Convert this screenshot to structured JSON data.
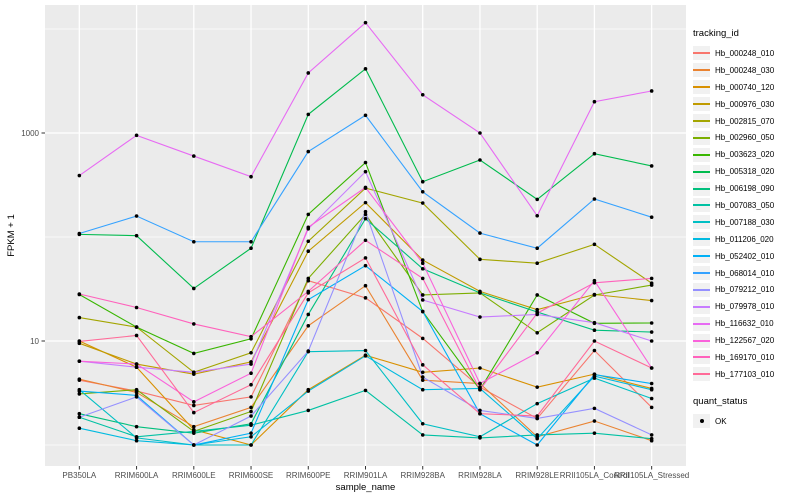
{
  "chart_data": {
    "type": "line",
    "title": "",
    "xlabel": "sample_name",
    "ylabel": "FPKM + 1",
    "y_scale": "log10",
    "y_tick_labels": [
      "1000",
      "10"
    ],
    "y_tick_values": [
      1000,
      10
    ],
    "y_minor_gridline_values": [
      1,
      100,
      10000
    ],
    "ylim": [
      0.65,
      15000
    ],
    "grid": "on",
    "legend_position": "right",
    "categories": [
      "PB350LA",
      "RRIM600LA",
      "RRIM600LE",
      "RRIM600SE",
      "RRIM600PE",
      "RRIM901LA",
      "RRIM928BA",
      "RRIM928LA",
      "RRIM928LE",
      "RRII105LA_Control",
      "RRII105LA_Stressed"
    ],
    "series": [
      {
        "name": "Hb_000248_010",
        "color": "#F8766D",
        "values": [
          4.2,
          3.3,
          2.4,
          2.9,
          38,
          26,
          10.6,
          3.6,
          1.8,
          8.1,
          2.3
        ]
      },
      {
        "name": "Hb_000248_030",
        "color": "#EA8331",
        "values": [
          4.3,
          3.2,
          1.5,
          2.3,
          14,
          34,
          4.2,
          3.9,
          1.2,
          1.7,
          1.1
        ]
      },
      {
        "name": "Hb_000740_120",
        "color": "#D89000",
        "values": [
          10,
          5.6,
          1.4,
          1.0,
          3.4,
          7.3,
          5.0,
          5.5,
          3.6,
          4.8,
          3.5
        ]
      },
      {
        "name": "Hb_000976_030",
        "color": "#C09B00",
        "values": [
          9.5,
          6.0,
          4.8,
          6.3,
          73,
          214,
          60,
          30,
          20,
          28,
          24.5
        ]
      },
      {
        "name": "Hb_002815_070",
        "color": "#A3A500",
        "values": [
          16.8,
          13.6,
          5.0,
          7.7,
          91,
          295,
          212,
          61,
          56,
          85,
          36
        ]
      },
      {
        "name": "Hb_002960_050",
        "color": "#7CAE00",
        "values": [
          3.1,
          3.4,
          1.35,
          2.1,
          40,
          165,
          27.7,
          29,
          12,
          27.7,
          34.5
        ]
      },
      {
        "name": "Hb_003623_020",
        "color": "#39B600",
        "values": [
          28,
          13.6,
          7.6,
          10.5,
          165,
          520,
          19.2,
          3.4,
          27.7,
          14.8,
          14.9
        ]
      },
      {
        "name": "Hb_005318_020",
        "color": "#00BB4E",
        "values": [
          106,
          103,
          32,
          78,
          1510,
          4140,
          340,
          550,
          230,
          632,
          482
        ]
      },
      {
        "name": "Hb_006198_090",
        "color": "#00BF7D",
        "values": [
          2.0,
          1.5,
          1.3,
          1.6,
          18,
          150,
          49.5,
          29,
          19,
          12.7,
          12.2
        ]
      },
      {
        "name": "Hb_007083_050",
        "color": "#00C1A3",
        "values": [
          1.85,
          1.2,
          1.35,
          1.55,
          2.15,
          3.35,
          1.25,
          1.17,
          1.25,
          1.3,
          1.15
        ]
      },
      {
        "name": "Hb_007188_030",
        "color": "#00BFC4",
        "values": [
          3.4,
          1.17,
          1.0,
          1.0,
          7.9,
          8.1,
          1.6,
          1.2,
          2.5,
          4.4,
          2.8
        ]
      },
      {
        "name": "Hb_011206_020",
        "color": "#00BAE0",
        "values": [
          1.45,
          1.1,
          1.0,
          1.2,
          3.3,
          7.2,
          3.4,
          3.5,
          1.15,
          4.6,
          3.4
        ]
      },
      {
        "name": "Hb_052402_010",
        "color": "#00B0F6",
        "values": [
          3.3,
          3.0,
          1.0,
          1.3,
          25,
          53,
          19.2,
          2.0,
          1.0,
          4.75,
          3.9
        ]
      },
      {
        "name": "Hb_068014_010",
        "color": "#35A2FF",
        "values": [
          108,
          159,
          90,
          90,
          663,
          1480,
          272,
          109,
          78,
          232,
          155
        ]
      },
      {
        "name": "Hb_079212_010",
        "color": "#9590FF",
        "values": [
          1.85,
          2.9,
          1.0,
          1.9,
          8,
          175,
          4.5,
          2.15,
          1.8,
          2.25,
          1.25
        ]
      },
      {
        "name": "Hb_079978_010",
        "color": "#C77CFF",
        "values": [
          6.4,
          5.6,
          5.0,
          6.0,
          120,
          425,
          24.8,
          17,
          18,
          15,
          10
        ]
      },
      {
        "name": "Hb_116632_010",
        "color": "#E76BF3",
        "values": [
          390,
          950,
          600,
          380,
          3780,
          11500,
          2330,
          1000,
          160,
          2000,
          2535
        ]
      },
      {
        "name": "Hb_122567_020",
        "color": "#FA62DB",
        "values": [
          6.4,
          6.0,
          2.6,
          4.9,
          124,
          300,
          56,
          3.9,
          7.7,
          38,
          5.5
        ]
      },
      {
        "name": "Hb_169170_010",
        "color": "#FF62BC",
        "values": [
          28.3,
          21,
          14.6,
          11,
          30,
          93,
          40,
          3.4,
          18.5,
          36.3,
          40
        ]
      },
      {
        "name": "Hb_177103_010",
        "color": "#FF6A98",
        "values": [
          9.9,
          11.3,
          2.05,
          3.8,
          29,
          63,
          5.9,
          2.0,
          1.9,
          10,
          5.5
        ]
      }
    ],
    "legend": {
      "tracking_id_title": "tracking_id",
      "quant_status_title": "quant_status",
      "quant_status_value": "OK"
    },
    "colors": {
      "panel_bg": "#EBEBEB",
      "gridline": "#FFFFFF",
      "axis_text": "#4D4D4D",
      "axis_title": "#000000",
      "point": "#000000"
    }
  }
}
